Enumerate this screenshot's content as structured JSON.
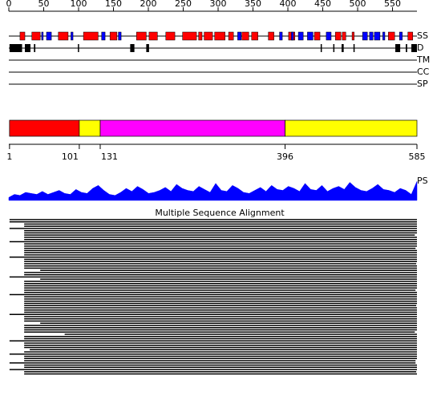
{
  "ruler": {
    "xlim": [
      0,
      585
    ],
    "ticks": [
      0,
      50,
      100,
      150,
      200,
      250,
      300,
      350,
      400,
      450,
      500,
      550
    ]
  },
  "tracks": [
    "SS",
    "D",
    "TM",
    "CC",
    "SP"
  ],
  "secondary_structure": {
    "helix_color": "#ff0000",
    "strand_color": "#0000ff",
    "helices": [
      [
        16,
        23
      ],
      [
        33,
        45
      ],
      [
        71,
        85
      ],
      [
        107,
        128
      ],
      [
        145,
        155
      ],
      [
        183,
        197
      ],
      [
        201,
        213
      ],
      [
        225,
        238
      ],
      [
        249,
        269
      ],
      [
        272,
        277
      ],
      [
        280,
        292
      ],
      [
        295,
        310
      ],
      [
        315,
        322
      ],
      [
        334,
        344
      ],
      [
        348,
        357
      ],
      [
        372,
        380
      ],
      [
        401,
        410
      ],
      [
        438,
        446
      ],
      [
        468,
        476
      ],
      [
        478,
        483
      ],
      [
        492,
        495
      ],
      [
        544,
        553
      ],
      [
        572,
        579
      ]
    ],
    "strands": [
      [
        47,
        49
      ],
      [
        54,
        61
      ],
      [
        89,
        92
      ],
      [
        133,
        138
      ],
      [
        157,
        161
      ],
      [
        328,
        333
      ],
      [
        388,
        392
      ],
      [
        405,
        408
      ],
      [
        415,
        422
      ],
      [
        428,
        436
      ],
      [
        455,
        462
      ],
      [
        507,
        514
      ],
      [
        517,
        522
      ],
      [
        524,
        532
      ],
      [
        536,
        539
      ],
      [
        560,
        564
      ]
    ]
  },
  "disorder": {
    "color": "#000000",
    "regions": [
      [
        1,
        19
      ],
      [
        23,
        31
      ],
      [
        36,
        38
      ],
      [
        99,
        100
      ],
      [
        174,
        180
      ],
      [
        197,
        201
      ],
      [
        447,
        448
      ],
      [
        465,
        466
      ],
      [
        477,
        480
      ],
      [
        494,
        495
      ],
      [
        554,
        561
      ],
      [
        569,
        571
      ],
      [
        577,
        585
      ]
    ]
  },
  "domains": {
    "boundaries": [
      1,
      101,
      131,
      396,
      585
    ],
    "colors": [
      "#ff0000",
      "#ffff00",
      "#ff00ff",
      "#ffff00"
    ]
  },
  "ps": {
    "label": "PS",
    "color": "#0000ff",
    "values": [
      0.15,
      0.3,
      0.25,
      0.4,
      0.35,
      0.3,
      0.45,
      0.3,
      0.4,
      0.5,
      0.35,
      0.3,
      0.55,
      0.4,
      0.35,
      0.6,
      0.75,
      0.5,
      0.3,
      0.25,
      0.4,
      0.6,
      0.45,
      0.7,
      0.55,
      0.35,
      0.4,
      0.5,
      0.65,
      0.45,
      0.8,
      0.6,
      0.5,
      0.45,
      0.7,
      0.55,
      0.4,
      0.85,
      0.5,
      0.45,
      0.75,
      0.6,
      0.4,
      0.35,
      0.5,
      0.65,
      0.45,
      0.75,
      0.55,
      0.5,
      0.7,
      0.6,
      0.45,
      0.85,
      0.55,
      0.5,
      0.75,
      0.45,
      0.6,
      0.7,
      0.55,
      0.9,
      0.65,
      0.5,
      0.45,
      0.6,
      0.8,
      0.55,
      0.5,
      0.4,
      0.6,
      0.5,
      0.3,
      0.95
    ]
  },
  "msa": {
    "title": "Multiple Sequence Alignment",
    "color": "#000000",
    "rows": [
      [
        1,
        585
      ],
      [
        1,
        585
      ],
      [
        22,
        585
      ],
      [
        22,
        585
      ],
      [
        1,
        585
      ],
      [
        22,
        585
      ],
      [
        22,
        585
      ],
      [
        22,
        582
      ],
      [
        22,
        585
      ],
      [
        22,
        585
      ],
      [
        1,
        585
      ],
      [
        22,
        585
      ],
      [
        22,
        585
      ],
      [
        22,
        583
      ],
      [
        22,
        585
      ],
      [
        22,
        585
      ],
      [
        22,
        585
      ],
      [
        1,
        585
      ],
      [
        22,
        585
      ],
      [
        22,
        585
      ],
      [
        22,
        584
      ],
      [
        22,
        585
      ],
      [
        22,
        585
      ],
      [
        45,
        585
      ],
      [
        22,
        585
      ],
      [
        22,
        585
      ],
      [
        1,
        585
      ],
      [
        45,
        585
      ],
      [
        22,
        585
      ],
      [
        22,
        585
      ],
      [
        22,
        585
      ],
      [
        22,
        585
      ],
      [
        22,
        583
      ],
      [
        22,
        585
      ],
      [
        1,
        585
      ],
      [
        22,
        585
      ],
      [
        22,
        585
      ],
      [
        22,
        585
      ],
      [
        22,
        585
      ],
      [
        22,
        584
      ],
      [
        22,
        585
      ],
      [
        22,
        585
      ],
      [
        22,
        585
      ],
      [
        1,
        585
      ],
      [
        22,
        585
      ],
      [
        22,
        585
      ],
      [
        22,
        585
      ],
      [
        45,
        585
      ],
      [
        22,
        585
      ],
      [
        22,
        585
      ],
      [
        22,
        585
      ],
      [
        22,
        582
      ],
      [
        80,
        585
      ],
      [
        22,
        585
      ],
      [
        22,
        585
      ],
      [
        1,
        585
      ],
      [
        22,
        585
      ],
      [
        22,
        585
      ],
      [
        22,
        585
      ],
      [
        30,
        585
      ],
      [
        22,
        585
      ],
      [
        1,
        585
      ],
      [
        22,
        585
      ],
      [
        22,
        585
      ],
      [
        22,
        583
      ],
      [
        1,
        583
      ],
      [
        22,
        585
      ],
      [
        22,
        585
      ],
      [
        1,
        585
      ],
      [
        22,
        584
      ],
      [
        22,
        585
      ]
    ]
  }
}
